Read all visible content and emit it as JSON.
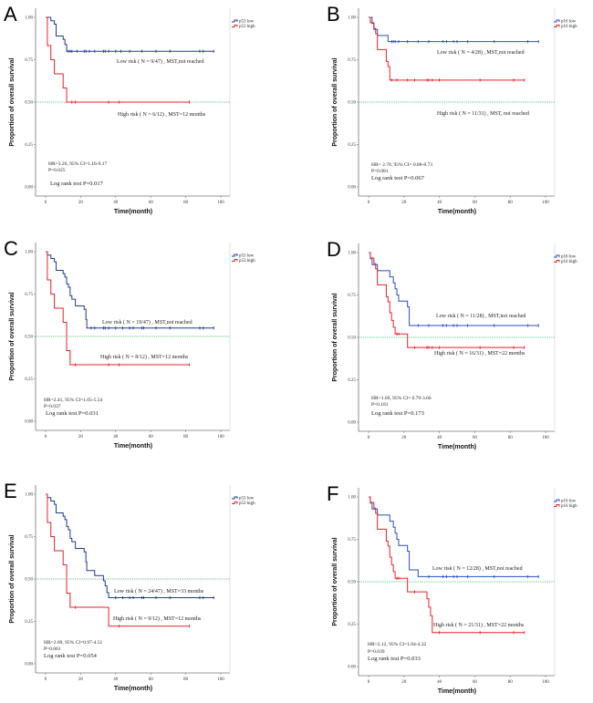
{
  "chart_data": [
    {
      "type": "line",
      "subtype": "kaplan-meier",
      "panel": "A",
      "xlabel": "Time(month)",
      "ylabel": "Proportion of overall survival",
      "xlim": [
        0,
        100
      ],
      "ylim": [
        0,
        1
      ],
      "xticks": [
        "0",
        "20",
        "40",
        "60",
        "80",
        "100"
      ],
      "yticks": [
        "0.00",
        "0.25",
        "0.50",
        "0.75",
        "1.00"
      ],
      "reference_line": 0.5,
      "legend_placement": "top-right",
      "series": [
        {
          "name": "p53 low",
          "color": "#1f3a93",
          "steps": [
            [
              3,
              0.98
            ],
            [
              5,
              0.96
            ],
            [
              6,
              0.89
            ],
            [
              10,
              0.87
            ],
            [
              11,
              0.84
            ],
            [
              12,
              0.8
            ]
          ],
          "censored": [
            13,
            14,
            15,
            18,
            22,
            23,
            25,
            28,
            33,
            34,
            36,
            40,
            43,
            48,
            55,
            63,
            71,
            88,
            90,
            96
          ]
        },
        {
          "name": "p53 high",
          "color": "#e8222a",
          "steps": [
            [
              1,
              0.833
            ],
            [
              3,
              0.75
            ],
            [
              5,
              0.667
            ],
            [
              10,
              0.583
            ],
            [
              12,
              0.5
            ]
          ],
          "censored": [
            15,
            17,
            36,
            42,
            82
          ]
        }
      ],
      "annotations": {
        "low": "Low risk ( N = 9/47) , MST,not reached",
        "high": "High risk ( N = 6/12) , MST=12 months",
        "hr": "HR=3.26, 95% CI=1.16-9.17",
        "p": "P=0.025",
        "logrank": "Log rank test P=0.017"
      }
    },
    {
      "type": "line",
      "subtype": "kaplan-meier",
      "panel": "B",
      "xlabel": "Time(month)",
      "ylabel": "Proportion of overall survival",
      "xlim": [
        0,
        100
      ],
      "ylim": [
        0,
        1
      ],
      "xticks": [
        "0",
        "20",
        "40",
        "60",
        "80",
        "100"
      ],
      "yticks": [
        "0.00",
        "0.25",
        "0.50",
        "0.75",
        "1.00"
      ],
      "reference_line": 0.5,
      "legend_placement": "top-right",
      "series": [
        {
          "name": "p16 low",
          "color": "#2a4fc0",
          "steps": [
            [
              2,
              0.964
            ],
            [
              3,
              0.929
            ],
            [
              5,
              0.893
            ],
            [
              11,
              0.857
            ]
          ],
          "censored": [
            13,
            14,
            15,
            17,
            22,
            28,
            34,
            42,
            44,
            48,
            50,
            56,
            71,
            90,
            96
          ]
        },
        {
          "name": "p16 high",
          "color": "#e8222a",
          "steps": [
            [
              1,
              0.968
            ],
            [
              3,
              0.935
            ],
            [
              4,
              0.903
            ],
            [
              5,
              0.81
            ],
            [
              10,
              0.74
            ],
            [
              11,
              0.71
            ],
            [
              12,
              0.63
            ]
          ],
          "censored": [
            13,
            16,
            22,
            26,
            33,
            34,
            36,
            40,
            63,
            82,
            88
          ]
        }
      ],
      "annotations": {
        "low": "Low risk ( N = 4/28) , MST,not reached",
        "high": "High risk ( N = 11/31) , MST, not reached",
        "hr": "HR= 2.78, 95% CI= 0.88-8.73",
        "p": "P=0.081",
        "logrank": "Log rank test P=0.067"
      }
    },
    {
      "type": "line",
      "subtype": "kaplan-meier",
      "panel": "C",
      "xlabel": "Time(month)",
      "ylabel": "Proportion of overall survival",
      "xlim": [
        0,
        100
      ],
      "ylim": [
        0,
        1
      ],
      "xticks": [
        "0",
        "20",
        "40",
        "60",
        "80",
        "100"
      ],
      "yticks": [
        "0.00",
        "0.25",
        "0.50",
        "0.75",
        "1.00"
      ],
      "reference_line": 0.5,
      "legend_placement": "top-right",
      "series": [
        {
          "name": "p53 low",
          "color": "#1f3a93",
          "steps": [
            [
              1,
              0.98
            ],
            [
              3,
              0.96
            ],
            [
              5,
              0.94
            ],
            [
              6,
              0.89
            ],
            [
              10,
              0.87
            ],
            [
              11,
              0.85
            ],
            [
              12,
              0.81
            ],
            [
              13,
              0.79
            ],
            [
              14,
              0.74
            ],
            [
              15,
              0.72
            ],
            [
              17,
              0.68
            ],
            [
              22,
              0.66
            ],
            [
              23,
              0.6
            ],
            [
              23.5,
              0.55
            ]
          ],
          "censored": [
            26,
            28,
            33,
            34,
            36,
            40,
            44,
            48,
            50,
            55,
            56,
            63,
            71,
            88,
            90,
            96
          ]
        },
        {
          "name": "p53 high",
          "color": "#e8222a",
          "steps": [
            [
              1,
              0.833
            ],
            [
              3,
              0.75
            ],
            [
              5,
              0.667
            ],
            [
              10,
              0.583
            ],
            [
              12,
              0.417
            ],
            [
              14,
              0.333
            ]
          ],
          "censored": [
            17,
            36,
            42,
            82
          ]
        }
      ],
      "annotations": {
        "low": "Low risk ( N = 19/47) , MST,not reached",
        "high": "High risk ( N = 8/12) , MST=12 months",
        "hr": "HR=2.41, 95% CI=1.05-5.54",
        "p": "P=0.037",
        "logrank": "Log rank test P=0.031"
      }
    },
    {
      "type": "line",
      "subtype": "kaplan-meier",
      "panel": "D",
      "xlabel": "Time(month)",
      "ylabel": "Proportion of overall survival",
      "xlim": [
        0,
        100
      ],
      "ylim": [
        0,
        1
      ],
      "xticks": [
        "0",
        "20",
        "40",
        "60",
        "80",
        "100"
      ],
      "yticks": [
        "0.00",
        "0.25",
        "0.50",
        "0.75",
        "1.00"
      ],
      "reference_line": 0.5,
      "legend_placement": "top-right",
      "series": [
        {
          "name": "p16 low",
          "color": "#2a4fc0",
          "steps": [
            [
              1,
              0.964
            ],
            [
              2,
              0.929
            ],
            [
              5,
              0.893
            ],
            [
              12,
              0.857
            ],
            [
              14,
              0.821
            ],
            [
              15,
              0.786
            ],
            [
              16,
              0.75
            ],
            [
              17,
              0.714
            ],
            [
              22,
              0.68
            ],
            [
              23,
              0.57
            ]
          ],
          "censored": [
            28,
            34,
            42,
            44,
            48,
            50,
            56,
            71,
            90,
            96
          ]
        },
        {
          "name": "p16 high",
          "color": "#e8222a",
          "steps": [
            [
              1,
              0.968
            ],
            [
              3,
              0.935
            ],
            [
              4,
              0.903
            ],
            [
              5,
              0.81
            ],
            [
              10,
              0.74
            ],
            [
              11,
              0.71
            ],
            [
              12,
              0.645
            ],
            [
              13,
              0.6
            ],
            [
              14,
              0.56
            ],
            [
              15,
              0.52
            ],
            [
              22,
              0.44
            ]
          ],
          "censored": [
            16,
            17,
            26,
            33,
            34,
            36,
            40,
            63,
            82,
            88
          ]
        }
      ],
      "annotations": {
        "low": "Low risk ( N = 11/28) , MST,not reached",
        "high": "High risk ( N = 16/31) , MST=22 months",
        "hr": "HR=1.69, 95% CI= 0.79-3.66",
        "p": "P=0.181",
        "logrank": "Log rank test P=0.173"
      }
    },
    {
      "type": "line",
      "subtype": "kaplan-meier",
      "panel": "E",
      "xlabel": "Time(month)",
      "ylabel": "Proportion of overall survival",
      "xlim": [
        0,
        100
      ],
      "ylim": [
        0,
        1
      ],
      "xticks": [
        "0",
        "20",
        "40",
        "60",
        "80",
        "100"
      ],
      "yticks": [
        "0.00",
        "0.25",
        "0.50",
        "0.75",
        "1.00"
      ],
      "reference_line": 0.5,
      "legend_placement": "top-right",
      "series": [
        {
          "name": "p53 low",
          "color": "#1f3a93",
          "steps": [
            [
              1,
              0.98
            ],
            [
              3,
              0.96
            ],
            [
              5,
              0.94
            ],
            [
              6,
              0.89
            ],
            [
              10,
              0.87
            ],
            [
              11,
              0.85
            ],
            [
              12,
              0.81
            ],
            [
              13,
              0.79
            ],
            [
              14,
              0.74
            ],
            [
              15,
              0.72
            ],
            [
              17,
              0.68
            ],
            [
              22,
              0.66
            ],
            [
              23,
              0.6
            ],
            [
              23.5,
              0.55
            ],
            [
              28,
              0.52
            ],
            [
              33,
              0.49
            ],
            [
              34,
              0.46
            ],
            [
              35,
              0.42
            ],
            [
              36,
              0.39
            ]
          ],
          "censored": [
            40,
            44,
            48,
            50,
            55,
            56,
            63,
            71,
            88,
            90,
            96
          ]
        },
        {
          "name": "p53 high",
          "color": "#e8222a",
          "steps": [
            [
              1,
              0.833
            ],
            [
              3,
              0.75
            ],
            [
              5,
              0.667
            ],
            [
              10,
              0.583
            ],
            [
              12,
              0.417
            ],
            [
              14,
              0.333
            ],
            [
              36,
              0.222
            ]
          ],
          "censored": [
            17,
            42,
            82
          ]
        }
      ],
      "annotations": {
        "low": "Low risk ( N = 24/47) , MST=33 months",
        "high": "High risk ( N = 9/12) , MST=12 months",
        "hr": "HR=2.09, 95% CI=0.97-4.51",
        "p": "P=0.061",
        "logrank": "Log rank test P=0.054"
      }
    },
    {
      "type": "line",
      "subtype": "kaplan-meier",
      "panel": "F",
      "xlabel": "Time(month)",
      "ylabel": "Proportion of overall survival",
      "xlim": [
        0,
        100
      ],
      "ylim": [
        0,
        1
      ],
      "xticks": [
        "0",
        "20",
        "40",
        "60",
        "80",
        "100"
      ],
      "yticks": [
        "0.00",
        "0.25",
        "0.50",
        "0.75",
        "1.00"
      ],
      "reference_line": 0.5,
      "legend_placement": "top-right",
      "series": [
        {
          "name": "p16 low",
          "color": "#2a4fc0",
          "steps": [
            [
              1,
              0.964
            ],
            [
              2,
              0.929
            ],
            [
              5,
              0.893
            ],
            [
              12,
              0.857
            ],
            [
              14,
              0.821
            ],
            [
              15,
              0.786
            ],
            [
              16,
              0.75
            ],
            [
              17,
              0.714
            ],
            [
              22,
              0.68
            ],
            [
              23,
              0.57
            ],
            [
              28,
              0.53
            ]
          ],
          "censored": [
            34,
            42,
            44,
            48,
            50,
            56,
            71,
            90,
            96
          ]
        },
        {
          "name": "p16 high",
          "color": "#e8222a",
          "steps": [
            [
              1,
              0.968
            ],
            [
              3,
              0.935
            ],
            [
              4,
              0.903
            ],
            [
              5,
              0.81
            ],
            [
              10,
              0.74
            ],
            [
              11,
              0.71
            ],
            [
              12,
              0.645
            ],
            [
              13,
              0.6
            ],
            [
              14,
              0.56
            ],
            [
              15,
              0.52
            ],
            [
              22,
              0.44
            ],
            [
              33,
              0.4
            ],
            [
              34,
              0.35
            ],
            [
              35,
              0.3
            ],
            [
              36,
              0.2
            ]
          ],
          "censored": [
            16,
            17,
            26,
            40,
            63,
            82,
            88
          ]
        }
      ],
      "annotations": {
        "low": "Low risk ( N = 12/28) , MST,not reached",
        "high": "High risk ( N = 21/31) , MST=22 months",
        "hr": "HR=2.12, 95% CI=1.04-4.32",
        "p": "P=0.039",
        "logrank": "Log rank test P=0.033"
      }
    }
  ],
  "colors": {
    "reference_line": "#22b14c",
    "axis": "#888888"
  }
}
